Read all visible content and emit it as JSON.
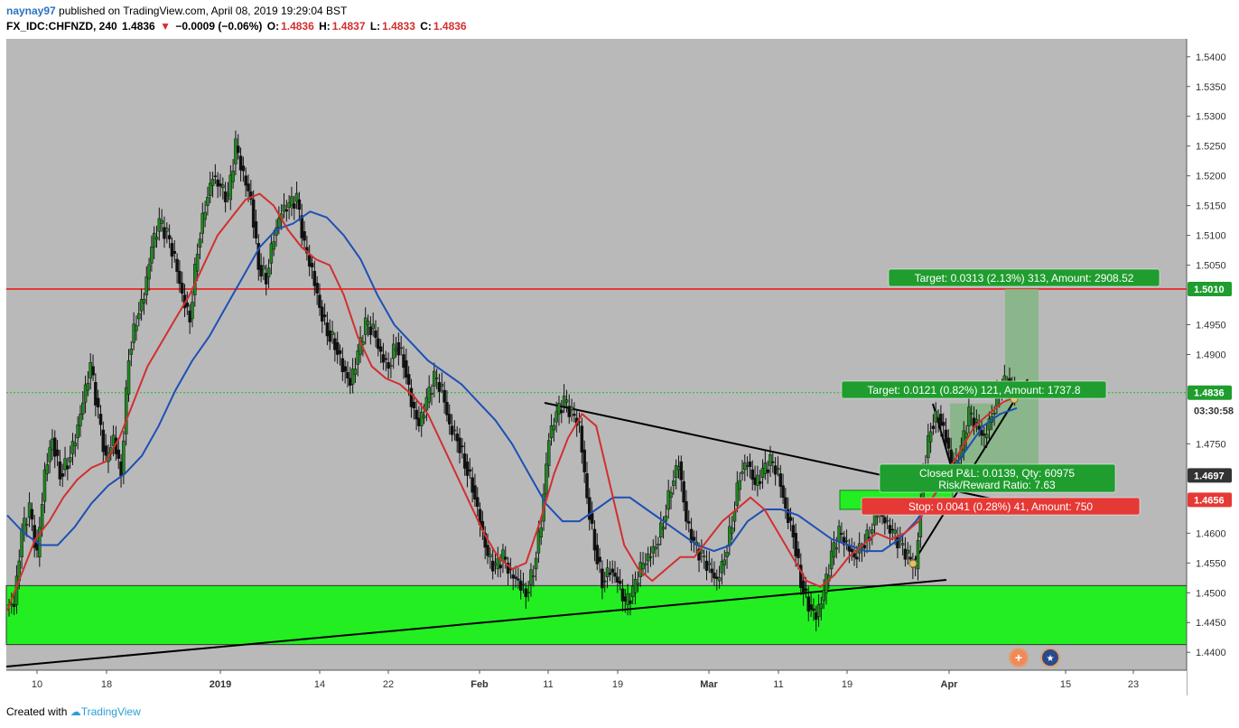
{
  "header": {
    "user": "naynay97",
    "published_text": " published on TradingView.com, April 08, 2019 19:29:04 BST",
    "symbol": "FX_IDC:CHFNZD, 240",
    "price": "1.4836",
    "change": "−0.0009 (−0.06%)",
    "open_label": "O:",
    "open": "1.4836",
    "high_label": "H:",
    "high": "1.4837",
    "low_label": "L:",
    "low": "1.4833",
    "close_label": "C:",
    "close": "1.4836"
  },
  "footer": {
    "created_with": "Created with",
    "brand": "TradingView"
  },
  "colors": {
    "plot_bg": "#b9b9b9",
    "support_zone": "#22ee22",
    "resistance_line": "#e53935",
    "ema_fast": "#d32f2f",
    "ema_slow": "#1e4fb5",
    "candle_up": "#1f8a1f",
    "candle_down": "#111111"
  },
  "chart_data": {
    "type": "candlestick",
    "ylim": [
      1.437,
      1.543
    ],
    "y_ticks": [
      "1.5400",
      "1.5350",
      "1.5300",
      "1.5250",
      "1.5200",
      "1.5150",
      "1.5100",
      "1.5050",
      "1.4950",
      "1.4900",
      "1.4750",
      "1.4600",
      "1.4550",
      "1.4500",
      "1.4450",
      "1.4400"
    ],
    "x_ticks": [
      {
        "label": "10",
        "bold": false
      },
      {
        "label": "18",
        "bold": false
      },
      {
        "label": "2019",
        "bold": true
      },
      {
        "label": "14",
        "bold": false
      },
      {
        "label": "22",
        "bold": false
      },
      {
        "label": "Feb",
        "bold": true
      },
      {
        "label": "11",
        "bold": false
      },
      {
        "label": "19",
        "bold": false
      },
      {
        "label": "Mar",
        "bold": true
      },
      {
        "label": "11",
        "bold": false
      },
      {
        "label": "19",
        "bold": false
      },
      {
        "label": "Apr",
        "bold": true
      },
      {
        "label": "15",
        "bold": false
      },
      {
        "label": "23",
        "bold": false
      }
    ],
    "price_labels": [
      {
        "text": "1.5010",
        "value": 1.501,
        "bg": "#1f9d2e",
        "fg": "#ffffff"
      },
      {
        "text": "1.4836",
        "value": 1.4836,
        "bg": "#1f9d2e",
        "fg": "#ffffff"
      },
      {
        "text": "03:30:58",
        "value": 1.4806,
        "bg": "#ffffff",
        "fg": "#333333"
      },
      {
        "text": "1.4697",
        "value": 1.4697,
        "bg": "#333333",
        "fg": "#ffffff"
      },
      {
        "text": "1.4656",
        "value": 1.4656,
        "bg": "#e53935",
        "fg": "#ffffff"
      }
    ],
    "close_series": [
      1.448,
      1.46,
      1.464,
      1.456,
      1.47,
      1.476,
      1.47,
      1.472,
      1.476,
      1.482,
      1.488,
      1.48,
      1.472,
      1.476,
      1.47,
      1.49,
      1.496,
      1.5,
      1.508,
      1.512,
      1.51,
      1.506,
      1.5,
      1.496,
      1.508,
      1.515,
      1.52,
      1.518,
      1.516,
      1.525,
      1.52,
      1.516,
      1.505,
      1.503,
      1.51,
      1.514,
      1.515,
      1.516,
      1.508,
      1.504,
      1.498,
      1.494,
      1.492,
      1.488,
      1.485,
      1.49,
      1.495,
      1.494,
      1.49,
      1.488,
      1.492,
      1.489,
      1.482,
      1.478,
      1.482,
      1.486,
      1.484,
      1.478,
      1.476,
      1.472,
      1.468,
      1.462,
      1.456,
      1.454,
      1.456,
      1.453,
      1.452,
      1.45,
      1.454,
      1.462,
      1.476,
      1.48,
      1.482,
      1.48,
      1.478,
      1.466,
      1.458,
      1.452,
      1.454,
      1.452,
      1.448,
      1.45,
      1.454,
      1.456,
      1.458,
      1.462,
      1.468,
      1.472,
      1.462,
      1.458,
      1.456,
      1.454,
      1.452,
      1.456,
      1.462,
      1.47,
      1.472,
      1.468,
      1.47,
      1.472,
      1.47,
      1.464,
      1.46,
      1.452,
      1.448,
      1.446,
      1.45,
      1.456,
      1.46,
      1.458,
      1.456,
      1.458,
      1.46,
      1.464,
      1.462,
      1.46,
      1.458,
      1.456,
      1.454,
      1.47,
      1.478,
      1.48,
      1.476,
      1.47,
      1.474,
      1.48,
      1.478,
      1.476,
      1.48,
      1.484,
      1.486,
      1.4836
    ],
    "ema_fast": [
      1.447,
      1.453,
      1.459,
      1.462,
      1.466,
      1.469,
      1.471,
      1.472,
      1.476,
      1.482,
      1.488,
      1.492,
      1.496,
      1.5,
      1.505,
      1.51,
      1.513,
      1.516,
      1.517,
      1.515,
      1.511,
      1.508,
      1.506,
      1.505,
      1.5,
      1.493,
      1.488,
      1.486,
      1.485,
      1.483,
      1.48,
      1.475,
      1.47,
      1.465,
      1.46,
      1.456,
      1.454,
      1.455,
      1.462,
      1.47,
      1.476,
      1.48,
      1.478,
      1.468,
      1.458,
      1.454,
      1.452,
      1.454,
      1.456,
      1.456,
      1.459,
      1.462,
      1.464,
      1.466,
      1.464,
      1.46,
      1.456,
      1.452,
      1.451,
      1.453,
      1.456,
      1.458,
      1.46,
      1.459,
      1.46,
      1.462,
      1.466,
      1.47,
      1.474,
      1.478,
      1.48,
      1.482,
      1.483
    ],
    "ema_slow": [
      1.463,
      1.46,
      1.458,
      1.458,
      1.461,
      1.465,
      1.468,
      1.47,
      1.473,
      1.478,
      1.484,
      1.489,
      1.493,
      1.498,
      1.503,
      1.508,
      1.511,
      1.512,
      1.514,
      1.513,
      1.51,
      1.506,
      1.5,
      1.495,
      1.492,
      1.489,
      1.487,
      1.485,
      1.482,
      1.479,
      1.475,
      1.47,
      1.465,
      1.462,
      1.462,
      1.464,
      1.466,
      1.466,
      1.464,
      1.462,
      1.46,
      1.458,
      1.457,
      1.458,
      1.462,
      1.464,
      1.464,
      1.463,
      1.461,
      1.459,
      1.458,
      1.457,
      1.457,
      1.459,
      1.462,
      1.466,
      1.47,
      1.474,
      1.478,
      1.48,
      1.481
    ]
  },
  "annotations": {
    "target_big": "Target: 0.0313 (2.13%) 313, Amount: 2908.52",
    "target_small": "Target: 0.0121 (0.82%) 121, Amount: 1737.8",
    "closed_pl": "Closed P&L: 0.0139, Qty: 60975",
    "risk_reward": "Risk/Reward Ratio: 7.63",
    "stop": "Stop: 0.0041 (0.28%) 41, Amount: 750"
  }
}
